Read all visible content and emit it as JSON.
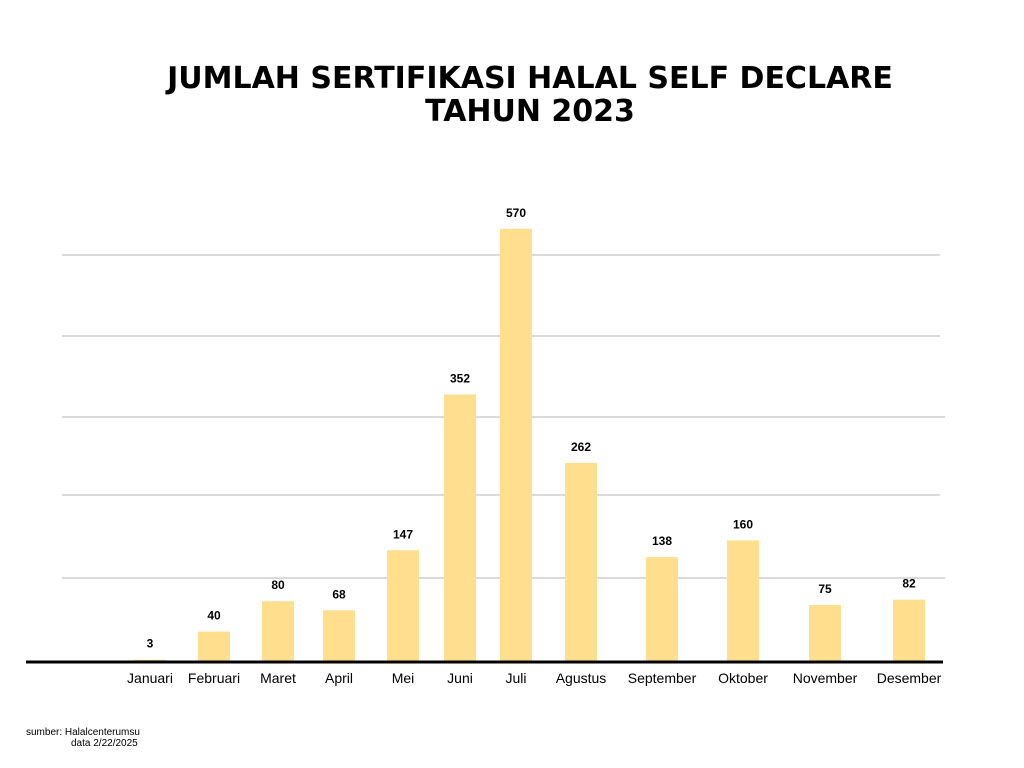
{
  "title_lines": [
    "JUMLAH SERTIFIKASI HALAL SELF DECLARE",
    "TAHUN 2023"
  ],
  "source_lines": [
    "sumber: Halalcenterumsu",
    "data 2/22/2025"
  ],
  "colors": {
    "bar": "#FFDE8D",
    "grid": "#B5B5B5",
    "axis": "#000000",
    "text": "#000000"
  },
  "chart_data": {
    "type": "bar",
    "title": "JUMLAH SERTIFIKASI HALAL SELF DECLARE TAHUN 2023",
    "categories": [
      "Januari",
      "Februari",
      "Maret",
      "April",
      "Mei",
      "Juni",
      "Juli",
      "Agustus",
      "September",
      "Oktober",
      "November",
      "Desember"
    ],
    "values": [
      3,
      40,
      80,
      68,
      147,
      352,
      570,
      262,
      138,
      160,
      75,
      82
    ],
    "data_labels": true,
    "grid": true,
    "legend": "none",
    "xlabel": "",
    "ylabel": ""
  }
}
